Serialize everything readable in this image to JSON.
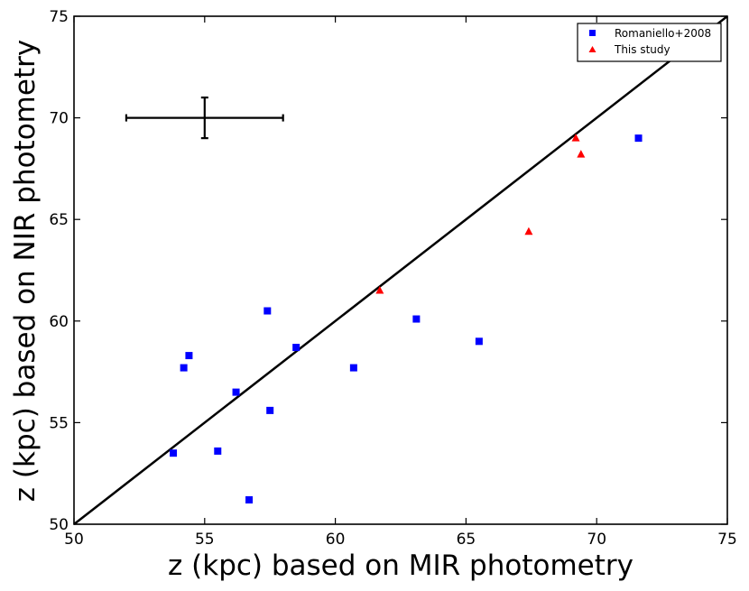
{
  "chart_data": {
    "type": "scatter",
    "title": "",
    "xlabel": "z (kpc) based on MIR photometry",
    "ylabel": "z (kpc) based on NIR photometry",
    "xlim": [
      50,
      75
    ],
    "ylim": [
      50,
      75
    ],
    "xticks": [
      "50",
      "55",
      "60",
      "65",
      "70",
      "75"
    ],
    "yticks": [
      "50",
      "55",
      "60",
      "65",
      "70",
      "75"
    ],
    "grid": false,
    "legend_position": "top-right",
    "reference_line": {
      "x": [
        50,
        75
      ],
      "y": [
        50,
        75
      ],
      "color": "#000000"
    },
    "error_bar": {
      "x": 55,
      "y": 70,
      "xerr": 3,
      "yerr": 1,
      "color": "#000000"
    },
    "series": [
      {
        "name": "Romaniello+2008",
        "marker": "square",
        "color": "#0000ff",
        "points": [
          [
            53.8,
            53.5
          ],
          [
            54.2,
            57.7
          ],
          [
            54.4,
            58.3
          ],
          [
            55.5,
            53.6
          ],
          [
            56.2,
            56.5
          ],
          [
            56.7,
            51.2
          ],
          [
            57.4,
            60.5
          ],
          [
            57.5,
            55.6
          ],
          [
            58.5,
            58.7
          ],
          [
            60.7,
            57.7
          ],
          [
            63.1,
            60.1
          ],
          [
            65.5,
            59.0
          ],
          [
            71.6,
            69.0
          ]
        ]
      },
      {
        "name": "This study",
        "marker": "triangle",
        "color": "#ff0000",
        "points": [
          [
            61.7,
            61.5
          ],
          [
            67.4,
            64.4
          ],
          [
            69.2,
            69.0
          ],
          [
            69.4,
            68.2
          ]
        ]
      }
    ]
  }
}
